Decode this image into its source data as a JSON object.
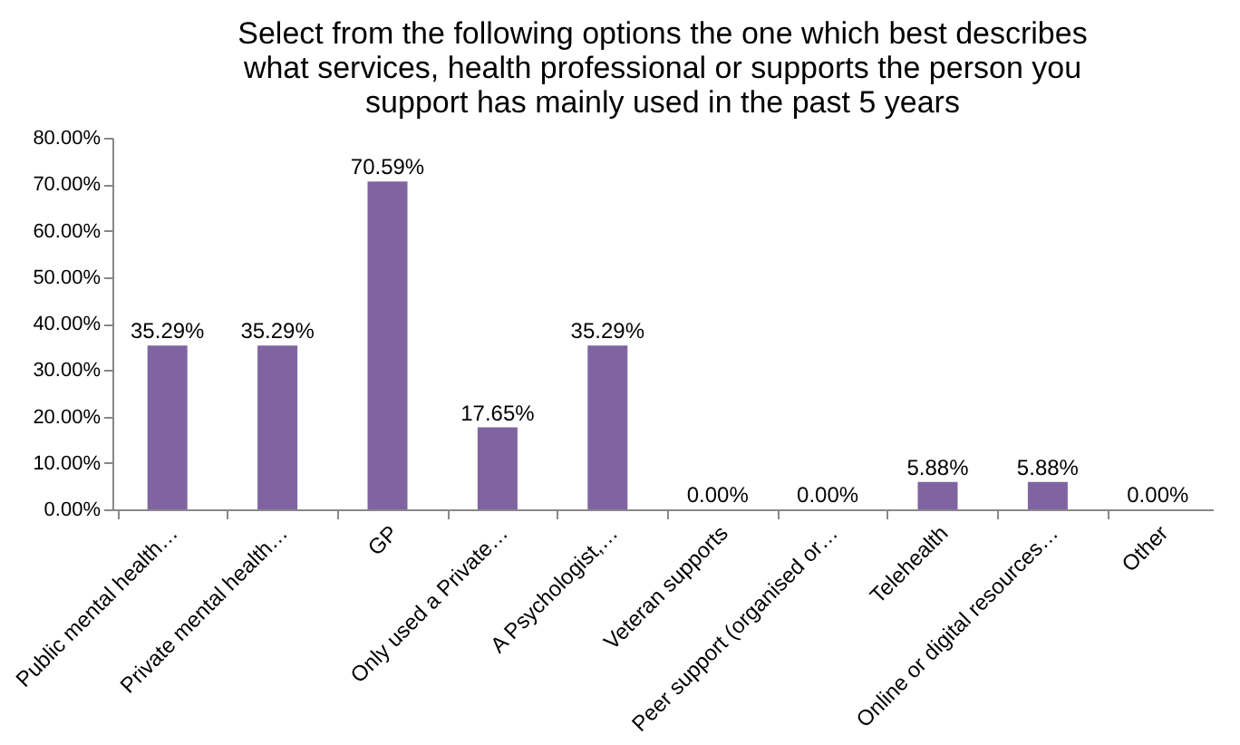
{
  "chart_data": {
    "type": "bar",
    "title": "Select from the following options the one which best describes what services, health professional or supports the person you support has mainly used in the past 5 years",
    "categories": [
      "Public mental health…",
      "Private mental health…",
      "GP",
      "Only used a Private…",
      "A Psychologist,…",
      "Veteran supports",
      "Peer support (organised or…",
      "Telehealth",
      "Online or digital resources…",
      "Other"
    ],
    "values": [
      35.29,
      35.29,
      70.59,
      17.65,
      35.29,
      0,
      0,
      5.88,
      5.88,
      0
    ],
    "value_labels": [
      "35.29%",
      "35.29%",
      "70.59%",
      "17.65%",
      "35.29%",
      "0.00%",
      "0.00%",
      "5.88%",
      "5.88%",
      "0.00%"
    ],
    "color": "#8064a2",
    "ylim": [
      0,
      80
    ],
    "yticks": [
      {
        "value": 0,
        "label": "0.00%"
      },
      {
        "value": 10,
        "label": "10.00%"
      },
      {
        "value": 20,
        "label": "20.00%"
      },
      {
        "value": 30,
        "label": "30.00%"
      },
      {
        "value": 40,
        "label": "40.00%"
      },
      {
        "value": 50,
        "label": "50.00%"
      },
      {
        "value": 60,
        "label": "60.00%"
      },
      {
        "value": 70,
        "label": "70.00%"
      },
      {
        "value": 80,
        "label": "80.00%"
      }
    ],
    "grid": false
  }
}
